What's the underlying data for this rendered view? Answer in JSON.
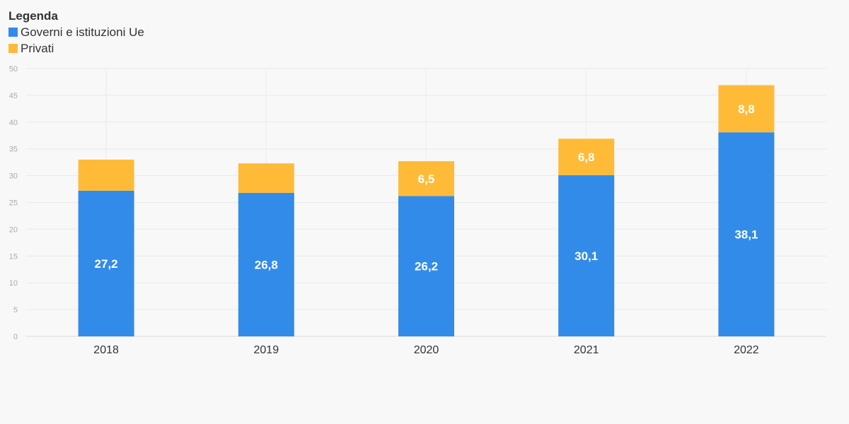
{
  "legend": {
    "title": "Legenda",
    "items": [
      {
        "label": "Governi e istituzioni Ue",
        "color": "#338be9"
      },
      {
        "label": "Privati",
        "color": "#ffbb38"
      }
    ]
  },
  "chart_data": {
    "type": "bar",
    "stacked": true,
    "categories": [
      "2018",
      "2019",
      "2020",
      "2021",
      "2022"
    ],
    "series": [
      {
        "name": "Governi e istituzioni Ue",
        "color": "#338be9",
        "values": [
          27.2,
          26.8,
          26.2,
          30.1,
          38.1
        ],
        "labels": [
          "27,2",
          "26,8",
          "26,2",
          "30,1",
          "38,1"
        ]
      },
      {
        "name": "Privati",
        "color": "#ffbb38",
        "values": [
          5.8,
          5.5,
          6.5,
          6.8,
          8.8
        ],
        "labels": [
          "",
          "",
          "6,5",
          "6,8",
          "8,8"
        ]
      }
    ],
    "ylim": [
      0,
      50
    ],
    "yticks": [
      0,
      5,
      10,
      15,
      20,
      25,
      30,
      35,
      40,
      45,
      50
    ],
    "grid": true,
    "legend_position": "top-left"
  }
}
